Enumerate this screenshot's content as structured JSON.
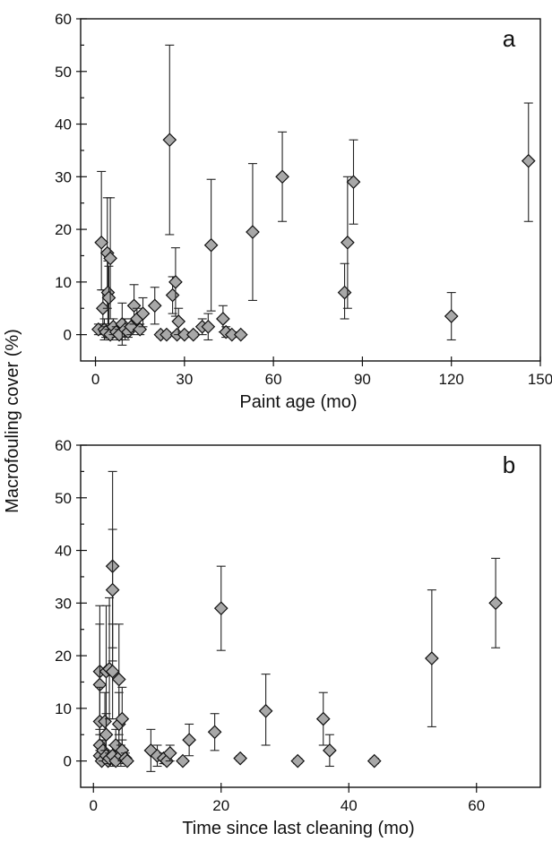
{
  "ylabel": "Macrofouling cover (%)",
  "chart_data": [
    {
      "type": "scatter",
      "panel_label": "a",
      "xlabel": "Paint age (mo)",
      "ylabel": "Macrofouling cover (%)",
      "xlim": [
        -5,
        150
      ],
      "ylim": [
        -5,
        60
      ],
      "xticks": [
        0,
        30,
        60,
        90,
        120,
        150
      ],
      "yticks": [
        0,
        10,
        20,
        30,
        40,
        50,
        60
      ],
      "error_bars": true,
      "points": [
        {
          "x": 1,
          "y": 1,
          "lo": 0,
          "hi": 2
        },
        {
          "x": 2,
          "y": 17.5,
          "lo": 8.5,
          "hi": 31
        },
        {
          "x": 2.5,
          "y": 5,
          "lo": 2,
          "hi": 8.5
        },
        {
          "x": 3,
          "y": 1,
          "lo": -1,
          "hi": 3
        },
        {
          "x": 3.5,
          "y": 0.5,
          "lo": -0.5,
          "hi": 1.5
        },
        {
          "x": 4,
          "y": 15.5,
          "lo": 5,
          "hi": 26
        },
        {
          "x": 4.2,
          "y": 8,
          "lo": 2,
          "hi": 14
        },
        {
          "x": 4.5,
          "y": 7,
          "lo": 1,
          "hi": 13
        },
        {
          "x": 5,
          "y": 14.5,
          "lo": 3,
          "hi": 26
        },
        {
          "x": 5,
          "y": 0,
          "lo": -1,
          "hi": 1
        },
        {
          "x": 6,
          "y": 1.5,
          "lo": 0,
          "hi": 3
        },
        {
          "x": 7,
          "y": 0.5,
          "lo": -0.5,
          "hi": 1.5
        },
        {
          "x": 8,
          "y": 0,
          "lo": -1,
          "hi": 1
        },
        {
          "x": 9,
          "y": 2,
          "lo": -2,
          "hi": 6
        },
        {
          "x": 10,
          "y": 1,
          "lo": -1,
          "hi": 3
        },
        {
          "x": 11,
          "y": 0.5,
          "lo": -0.5,
          "hi": 1.5
        },
        {
          "x": 12,
          "y": 1.5,
          "lo": 0,
          "hi": 3
        },
        {
          "x": 13,
          "y": 5.5,
          "lo": 2,
          "hi": 9.5
        },
        {
          "x": 14,
          "y": 3,
          "lo": 1,
          "hi": 5
        },
        {
          "x": 15,
          "y": 1,
          "lo": 0,
          "hi": 2
        },
        {
          "x": 16,
          "y": 4,
          "lo": 1.5,
          "hi": 7
        },
        {
          "x": 20,
          "y": 5.5,
          "lo": 2,
          "hi": 9
        },
        {
          "x": 22,
          "y": 0,
          "lo": -0.5,
          "hi": 0.5
        },
        {
          "x": 24,
          "y": 0,
          "lo": -0.5,
          "hi": 0.5
        },
        {
          "x": 25,
          "y": 37,
          "lo": 19,
          "hi": 55
        },
        {
          "x": 26,
          "y": 7.5,
          "lo": 4,
          "hi": 11
        },
        {
          "x": 27,
          "y": 10,
          "lo": 3.5,
          "hi": 16.5
        },
        {
          "x": 27.5,
          "y": 0,
          "lo": -0.5,
          "hi": 0.5
        },
        {
          "x": 28,
          "y": 2.5,
          "lo": 0,
          "hi": 5
        },
        {
          "x": 30,
          "y": 0,
          "lo": -0.5,
          "hi": 0.5
        },
        {
          "x": 33,
          "y": 0,
          "lo": -0.5,
          "hi": 0.5
        },
        {
          "x": 36,
          "y": 1.5,
          "lo": 0,
          "hi": 3
        },
        {
          "x": 38,
          "y": 1.5,
          "lo": -1,
          "hi": 4
        },
        {
          "x": 39,
          "y": 17,
          "lo": 4.5,
          "hi": 29.5
        },
        {
          "x": 43,
          "y": 3,
          "lo": 0.5,
          "hi": 5.5
        },
        {
          "x": 44,
          "y": 0.5,
          "lo": -0.5,
          "hi": 1.5
        },
        {
          "x": 46,
          "y": 0,
          "lo": -0.5,
          "hi": 0.5
        },
        {
          "x": 49,
          "y": 0,
          "lo": -0.5,
          "hi": 0.5
        },
        {
          "x": 53,
          "y": 19.5,
          "lo": 6.5,
          "hi": 32.5
        },
        {
          "x": 63,
          "y": 30,
          "lo": 21.5,
          "hi": 38.5
        },
        {
          "x": 84,
          "y": 8,
          "lo": 3,
          "hi": 13.5
        },
        {
          "x": 85,
          "y": 17.5,
          "lo": 5,
          "hi": 30
        },
        {
          "x": 87,
          "y": 29,
          "lo": 21,
          "hi": 37
        },
        {
          "x": 120,
          "y": 3.5,
          "lo": -1,
          "hi": 8
        },
        {
          "x": 146,
          "y": 33,
          "lo": 21.5,
          "hi": 44
        }
      ]
    },
    {
      "type": "scatter",
      "panel_label": "b",
      "xlabel": "Time since last cleaning (mo)",
      "ylabel": "Macrofouling cover (%)",
      "xlim": [
        -2,
        70
      ],
      "ylim": [
        -5,
        60
      ],
      "xticks": [
        0,
        20,
        40,
        60
      ],
      "yticks": [
        0,
        10,
        20,
        30,
        40,
        50,
        60
      ],
      "error_bars": true,
      "points": [
        {
          "x": 1,
          "y": 17,
          "lo": 5,
          "hi": 29.5
        },
        {
          "x": 1,
          "y": 14.5,
          "lo": 3,
          "hi": 26
        },
        {
          "x": 1,
          "y": 7.5,
          "lo": 1,
          "hi": 14
        },
        {
          "x": 1,
          "y": 3,
          "lo": 0,
          "hi": 6
        },
        {
          "x": 1,
          "y": 1,
          "lo": 0,
          "hi": 2
        },
        {
          "x": 1.3,
          "y": 0,
          "lo": -0.5,
          "hi": 0.5
        },
        {
          "x": 1.5,
          "y": 2,
          "lo": 0,
          "hi": 4
        },
        {
          "x": 1.8,
          "y": 7.5,
          "lo": 2,
          "hi": 13
        },
        {
          "x": 2,
          "y": 17,
          "lo": 4.5,
          "hi": 29.5
        },
        {
          "x": 2,
          "y": 5,
          "lo": 1,
          "hi": 9
        },
        {
          "x": 2,
          "y": 1,
          "lo": 0,
          "hi": 2
        },
        {
          "x": 2.3,
          "y": 0,
          "lo": -0.5,
          "hi": 0.5
        },
        {
          "x": 2.5,
          "y": 17.5,
          "lo": 8,
          "hi": 31
        },
        {
          "x": 2.5,
          "y": 0.5,
          "lo": -0.5,
          "hi": 1.5
        },
        {
          "x": 3,
          "y": 37,
          "lo": 19,
          "hi": 55
        },
        {
          "x": 3,
          "y": 32.5,
          "lo": 21.5,
          "hi": 44
        },
        {
          "x": 3,
          "y": 17,
          "lo": 8,
          "hi": 26
        },
        {
          "x": 3,
          "y": 1,
          "lo": -1,
          "hi": 3
        },
        {
          "x": 3.5,
          "y": 3,
          "lo": 0,
          "hi": 6
        },
        {
          "x": 3.5,
          "y": 0,
          "lo": -0.5,
          "hi": 0.5
        },
        {
          "x": 4,
          "y": 15.5,
          "lo": 5,
          "hi": 26
        },
        {
          "x": 4,
          "y": 7,
          "lo": 1,
          "hi": 13
        },
        {
          "x": 4.3,
          "y": 1,
          "lo": -1,
          "hi": 3
        },
        {
          "x": 4.5,
          "y": 8,
          "lo": 2,
          "hi": 14
        },
        {
          "x": 4.5,
          "y": 2,
          "lo": 0,
          "hi": 4
        },
        {
          "x": 5,
          "y": 0.5,
          "lo": -0.5,
          "hi": 1.5
        },
        {
          "x": 5.3,
          "y": 0,
          "lo": -0.5,
          "hi": 0.5
        },
        {
          "x": 9,
          "y": 2,
          "lo": -2,
          "hi": 6
        },
        {
          "x": 10,
          "y": 1,
          "lo": -1,
          "hi": 3
        },
        {
          "x": 11,
          "y": 0.5,
          "lo": -0.5,
          "hi": 1.5
        },
        {
          "x": 11.5,
          "y": 0,
          "lo": -0.5,
          "hi": 0.5
        },
        {
          "x": 12,
          "y": 1.5,
          "lo": 0,
          "hi": 3
        },
        {
          "x": 14,
          "y": 0,
          "lo": -0.5,
          "hi": 0.5
        },
        {
          "x": 15,
          "y": 4,
          "lo": 1,
          "hi": 7
        },
        {
          "x": 19,
          "y": 5.5,
          "lo": 2,
          "hi": 9
        },
        {
          "x": 20,
          "y": 29,
          "lo": 21,
          "hi": 37
        },
        {
          "x": 23,
          "y": 0.5,
          "lo": 0,
          "hi": 1
        },
        {
          "x": 27,
          "y": 9.5,
          "lo": 3,
          "hi": 16.5
        },
        {
          "x": 32,
          "y": 0,
          "lo": -0.5,
          "hi": 0.5
        },
        {
          "x": 36,
          "y": 8,
          "lo": 3,
          "hi": 13
        },
        {
          "x": 37,
          "y": 2,
          "lo": -1,
          "hi": 5
        },
        {
          "x": 44,
          "y": 0,
          "lo": -0.5,
          "hi": 0.5
        },
        {
          "x": 53,
          "y": 19.5,
          "lo": 6.5,
          "hi": 32.5
        },
        {
          "x": 63,
          "y": 30,
          "lo": 21.5,
          "hi": 38.5
        }
      ]
    }
  ]
}
